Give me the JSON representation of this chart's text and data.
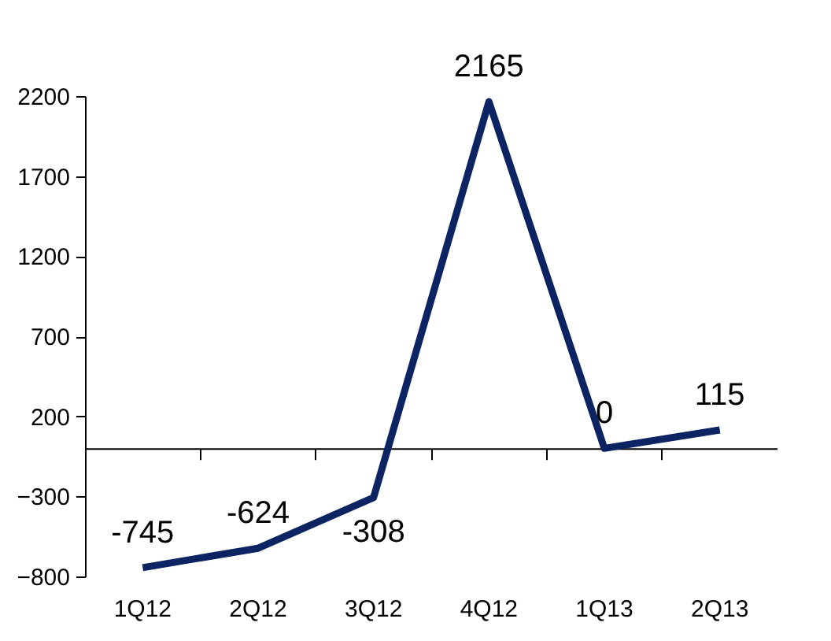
{
  "chart_data": {
    "type": "line",
    "categories": [
      "1Q12",
      "2Q12",
      "3Q12",
      "4Q12",
      "1Q13",
      "2Q13"
    ],
    "series": [
      {
        "color": "#0c2461",
        "values": [
          -745,
          -624,
          -308,
          2165,
          0,
          115
        ]
      }
    ],
    "ylim": [
      -800,
      2200
    ],
    "yticks": [
      -800,
      -300,
      200,
      700,
      1200,
      1700,
      2200
    ],
    "data_labels": true,
    "grid": false,
    "marker": "none",
    "line_style": "solid"
  }
}
